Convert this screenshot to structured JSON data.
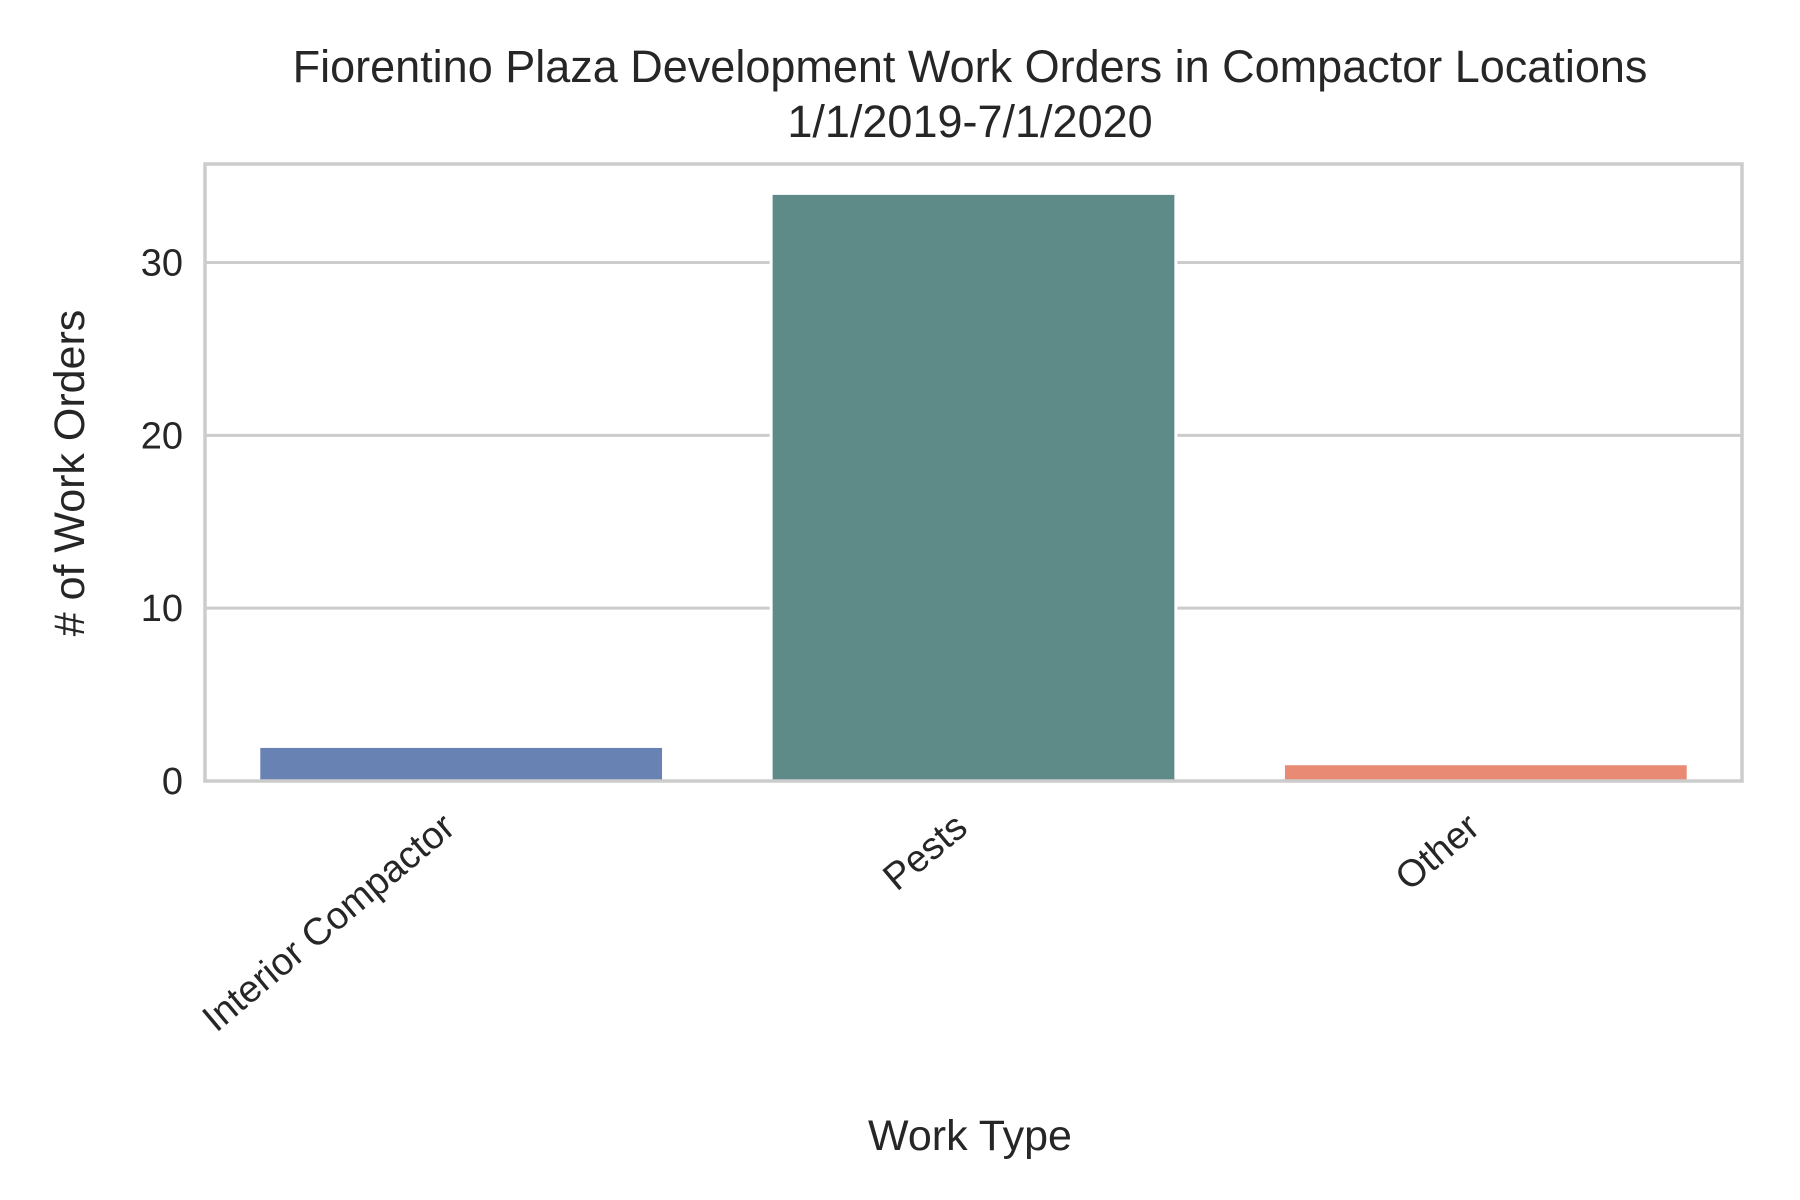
{
  "chart_data": {
    "type": "bar",
    "title": "Fiorentino Plaza Development Work Orders in Compactor Locations",
    "subtitle": "1/1/2019-7/1/2020",
    "xlabel": "Work Type",
    "ylabel": "# of Work Orders",
    "categories": [
      "Interior Compactor",
      "Pests",
      "Other"
    ],
    "values": [
      2,
      34,
      1
    ],
    "colors": [
      "#6882b4",
      "#5e8a88",
      "#e98a74"
    ],
    "ylim": [
      0,
      35.7
    ],
    "yticks": [
      0,
      10,
      20,
      30
    ],
    "grid": true,
    "legend": "none"
  },
  "style": {
    "background": "#ffffff",
    "gridline_color": "#cccccc",
    "frame_color": "#cccccc",
    "text_color": "#262626"
  }
}
